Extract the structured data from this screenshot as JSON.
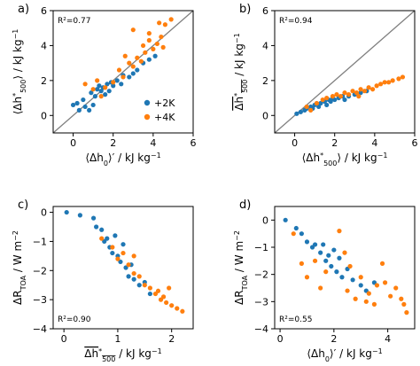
{
  "colors": {
    "plus2k": "#1f77b4",
    "plus4k": "#ff7f0e",
    "oneToOne": "#808080",
    "axis": "#000000"
  },
  "legend": {
    "entries": [
      {
        "label": "+2K",
        "color": "#1f77b4"
      },
      {
        "label": "+4K",
        "color": "#ff7f0e"
      }
    ],
    "placement": "lower-right of panel a"
  },
  "chart_data": [
    {
      "type": "scatter",
      "panel": "a)",
      "r2": "R²=0.77",
      "xlabel": "⟨Δh₀⟩′ / kJ kg⁻¹",
      "ylabel": "⟨Δh*₅₀₀⟩ / kJ kg⁻¹",
      "xlim": [
        -1,
        6
      ],
      "ylim": [
        -1,
        6
      ],
      "xticks": [
        0,
        2,
        4,
        6
      ],
      "yticks": [
        0,
        2,
        4,
        6
      ],
      "one_to_one_line": true,
      "series": [
        {
          "name": "+2K",
          "points": [
            [
              0,
              0.6
            ],
            [
              0.2,
              0.7
            ],
            [
              0.3,
              0.3
            ],
            [
              0.5,
              0.9
            ],
            [
              0.6,
              0.5
            ],
            [
              0.8,
              0.3
            ],
            [
              0.9,
              1.3
            ],
            [
              1,
              0.6
            ],
            [
              1.1,
              1.1
            ],
            [
              1.2,
              1.5
            ],
            [
              1.3,
              1.7
            ],
            [
              1.4,
              1.4
            ],
            [
              1.5,
              1.6
            ],
            [
              1.6,
              1.2
            ],
            [
              1.7,
              1.8
            ],
            [
              1.8,
              1.4
            ],
            [
              1.9,
              1.9
            ],
            [
              2,
              1.7
            ],
            [
              2.2,
              2
            ],
            [
              2.4,
              1.8
            ],
            [
              2.5,
              2.3
            ],
            [
              2.8,
              2.2
            ],
            [
              3,
              2.4
            ],
            [
              3.2,
              2.6
            ],
            [
              3.5,
              3
            ],
            [
              3.8,
              3.2
            ],
            [
              4.1,
              3.4
            ]
          ]
        },
        {
          "name": "+4K",
          "points": [
            [
              0.6,
              1.8
            ],
            [
              1,
              1.5
            ],
            [
              1.2,
              2
            ],
            [
              1.4,
              1.1
            ],
            [
              1.6,
              1.6
            ],
            [
              2,
              1.9
            ],
            [
              2.3,
              2.6
            ],
            [
              2.5,
              2.2
            ],
            [
              2.8,
              3
            ],
            [
              3,
              2.8
            ],
            [
              3.2,
              3.3
            ],
            [
              3.4,
              3.1
            ],
            [
              3.5,
              4
            ],
            [
              3.6,
              3.6
            ],
            [
              3.8,
              4.3
            ],
            [
              4,
              3.8
            ],
            [
              4.2,
              4.1
            ],
            [
              4.4,
              4.5
            ],
            [
              4.5,
              3.9
            ],
            [
              3.8,
              4.7
            ],
            [
              4.6,
              5.2
            ],
            [
              4.9,
              5.5
            ],
            [
              3,
              4.9
            ],
            [
              2.6,
              3.4
            ],
            [
              4.3,
              5.3
            ]
          ]
        }
      ]
    },
    {
      "type": "scatter",
      "panel": "b)",
      "r2": "R²=0.94",
      "xlabel": "⟨Δh*₅₀₀⟩ / kJ kg⁻¹",
      "ylabel": "Δh*₅₀₀ / kJ kg⁻¹",
      "xlim": [
        -1,
        6
      ],
      "ylim": [
        -1,
        6
      ],
      "xticks": [
        0,
        2,
        4,
        6
      ],
      "yticks": [
        0,
        2,
        4,
        6
      ],
      "one_to_one_line": true,
      "series": [
        {
          "name": "+2K",
          "points": [
            [
              0.1,
              0.1
            ],
            [
              0.3,
              0.2
            ],
            [
              0.5,
              0.3
            ],
            [
              0.6,
              0.4
            ],
            [
              0.8,
              0.5
            ],
            [
              0.9,
              0.4
            ],
            [
              1,
              0.6
            ],
            [
              1.2,
              0.5
            ],
            [
              1.3,
              0.7
            ],
            [
              1.5,
              0.8
            ],
            [
              1.6,
              0.6
            ],
            [
              1.7,
              0.9
            ],
            [
              1.8,
              0.8
            ],
            [
              1.9,
              1
            ],
            [
              2,
              0.9
            ],
            [
              2.2,
              1
            ],
            [
              2.4,
              1.1
            ],
            [
              2.5,
              0.9
            ],
            [
              2.7,
              1.1
            ],
            [
              3,
              1.2
            ],
            [
              3.3,
              1.3
            ],
            [
              3.6,
              1.4
            ]
          ]
        },
        {
          "name": "+4K",
          "points": [
            [
              0.6,
              0.5
            ],
            [
              0.8,
              0.3
            ],
            [
              1.1,
              0.7
            ],
            [
              1.4,
              0.9
            ],
            [
              1.6,
              1
            ],
            [
              1.9,
              1.1
            ],
            [
              2.1,
              1.2
            ],
            [
              2.3,
              1.1
            ],
            [
              2.5,
              1.3
            ],
            [
              2.7,
              1.2
            ],
            [
              2.9,
              1.4
            ],
            [
              3.1,
              1.3
            ],
            [
              3.3,
              1.5
            ],
            [
              3.5,
              1.4
            ],
            [
              3.7,
              1.6
            ],
            [
              3.9,
              1.5
            ],
            [
              4.1,
              1.7
            ],
            [
              4.3,
              1.8
            ],
            [
              4.5,
              1.9
            ],
            [
              4.7,
              1.9
            ],
            [
              4.9,
              2
            ],
            [
              5.2,
              2.1
            ],
            [
              5.4,
              2.2
            ],
            [
              3.2,
              1.1
            ]
          ]
        }
      ]
    },
    {
      "type": "scatter",
      "panel": "c)",
      "r2": "R²=0.90",
      "xlabel": "Δh*₅₀₀ / kJ kg⁻¹",
      "ylabel": "ΔR_TOA / W m⁻²",
      "xlim": [
        -0.2,
        2.4
      ],
      "ylim": [
        -4,
        0.2
      ],
      "xticks": [
        0,
        1,
        2
      ],
      "yticks": [
        -4,
        -3,
        -2,
        -1,
        0
      ],
      "one_to_one_line": false,
      "series": [
        {
          "name": "+2K",
          "points": [
            [
              0.05,
              0
            ],
            [
              0.3,
              -0.1
            ],
            [
              0.55,
              -0.2
            ],
            [
              0.6,
              -0.5
            ],
            [
              0.7,
              -0.6
            ],
            [
              0.75,
              -1
            ],
            [
              0.8,
              -0.9
            ],
            [
              0.85,
              -1.2
            ],
            [
              0.9,
              -1.4
            ],
            [
              0.95,
              -0.8
            ],
            [
              1,
              -1.5
            ],
            [
              1.05,
              -1.7
            ],
            [
              1.1,
              -1.1
            ],
            [
              1.15,
              -1.9
            ],
            [
              1.2,
              -2.2
            ],
            [
              1.25,
              -1.8
            ],
            [
              1.3,
              -2.3
            ],
            [
              1.4,
              -2.5
            ],
            [
              1.5,
              -2.4
            ],
            [
              1.6,
              -2.8
            ]
          ]
        },
        {
          "name": "+4K",
          "points": [
            [
              0.7,
              -0.9
            ],
            [
              0.9,
              -1.2
            ],
            [
              1,
              -1.6
            ],
            [
              1.1,
              -1.4
            ],
            [
              1.2,
              -1.8
            ],
            [
              1.3,
              -2.1
            ],
            [
              1.4,
              -2.2
            ],
            [
              1.5,
              -2.5
            ],
            [
              1.6,
              -2.6
            ],
            [
              1.7,
              -2.8
            ],
            [
              1.75,
              -2.7
            ],
            [
              1.8,
              -3
            ],
            [
              1.85,
              -2.9
            ],
            [
              1.9,
              -3.1
            ],
            [
              2,
              -3.2
            ],
            [
              2.1,
              -3.3
            ],
            [
              2.2,
              -3.4
            ],
            [
              1.95,
              -2.6
            ],
            [
              1.3,
              -1.5
            ]
          ]
        }
      ]
    },
    {
      "type": "scatter",
      "panel": "d)",
      "r2": "R²=0.55",
      "xlabel": "⟨Δh₀⟩′ / kJ kg⁻¹",
      "ylabel": "ΔR_TOA / W m⁻²",
      "xlim": [
        -0.2,
        5
      ],
      "ylim": [
        -4,
        0.5
      ],
      "xticks": [
        0,
        2,
        4
      ],
      "yticks": [
        -4,
        -3,
        -2,
        -1,
        0
      ],
      "one_to_one_line": false,
      "series": [
        {
          "name": "+2K",
          "points": [
            [
              0.2,
              0
            ],
            [
              0.6,
              -0.3
            ],
            [
              0.8,
              -0.5
            ],
            [
              1,
              -0.8
            ],
            [
              1.2,
              -1
            ],
            [
              1.3,
              -0.9
            ],
            [
              1.5,
              -1.2
            ],
            [
              1.6,
              -0.9
            ],
            [
              1.7,
              -1.5
            ],
            [
              1.8,
              -1.3
            ],
            [
              1.9,
              -1.7
            ],
            [
              2,
              -1.1
            ],
            [
              2.1,
              -1.9
            ],
            [
              2.2,
              -1.4
            ],
            [
              2.3,
              -2.1
            ],
            [
              2.5,
              -1.8
            ],
            [
              2.7,
              -2.2
            ],
            [
              3,
              -2.4
            ],
            [
              3.2,
              -2.6
            ],
            [
              3.5,
              -2.3
            ]
          ]
        },
        {
          "name": "+4K",
          "points": [
            [
              0.5,
              -0.5
            ],
            [
              0.8,
              -1.6
            ],
            [
              1,
              -2.1
            ],
            [
              1.3,
              -1.5
            ],
            [
              1.5,
              -2.5
            ],
            [
              1.7,
              -1.9
            ],
            [
              2.2,
              -0.4
            ],
            [
              2.4,
              -1.2
            ],
            [
              2.5,
              -2.6
            ],
            [
              2.6,
              -1.7
            ],
            [
              2.8,
              -2.9
            ],
            [
              3,
              -2.1
            ],
            [
              3.2,
              -3
            ],
            [
              3.3,
              -2.7
            ],
            [
              3.5,
              -3.1
            ],
            [
              3.8,
              -1.6
            ],
            [
              3.9,
              -2.3
            ],
            [
              4.1,
              -2.8
            ],
            [
              4.3,
              -2.5
            ],
            [
              4.5,
              -2.9
            ],
            [
              4.6,
              -3.1
            ],
            [
              4.7,
              -3.4
            ],
            [
              3.6,
              -2.4
            ]
          ]
        }
      ]
    }
  ]
}
